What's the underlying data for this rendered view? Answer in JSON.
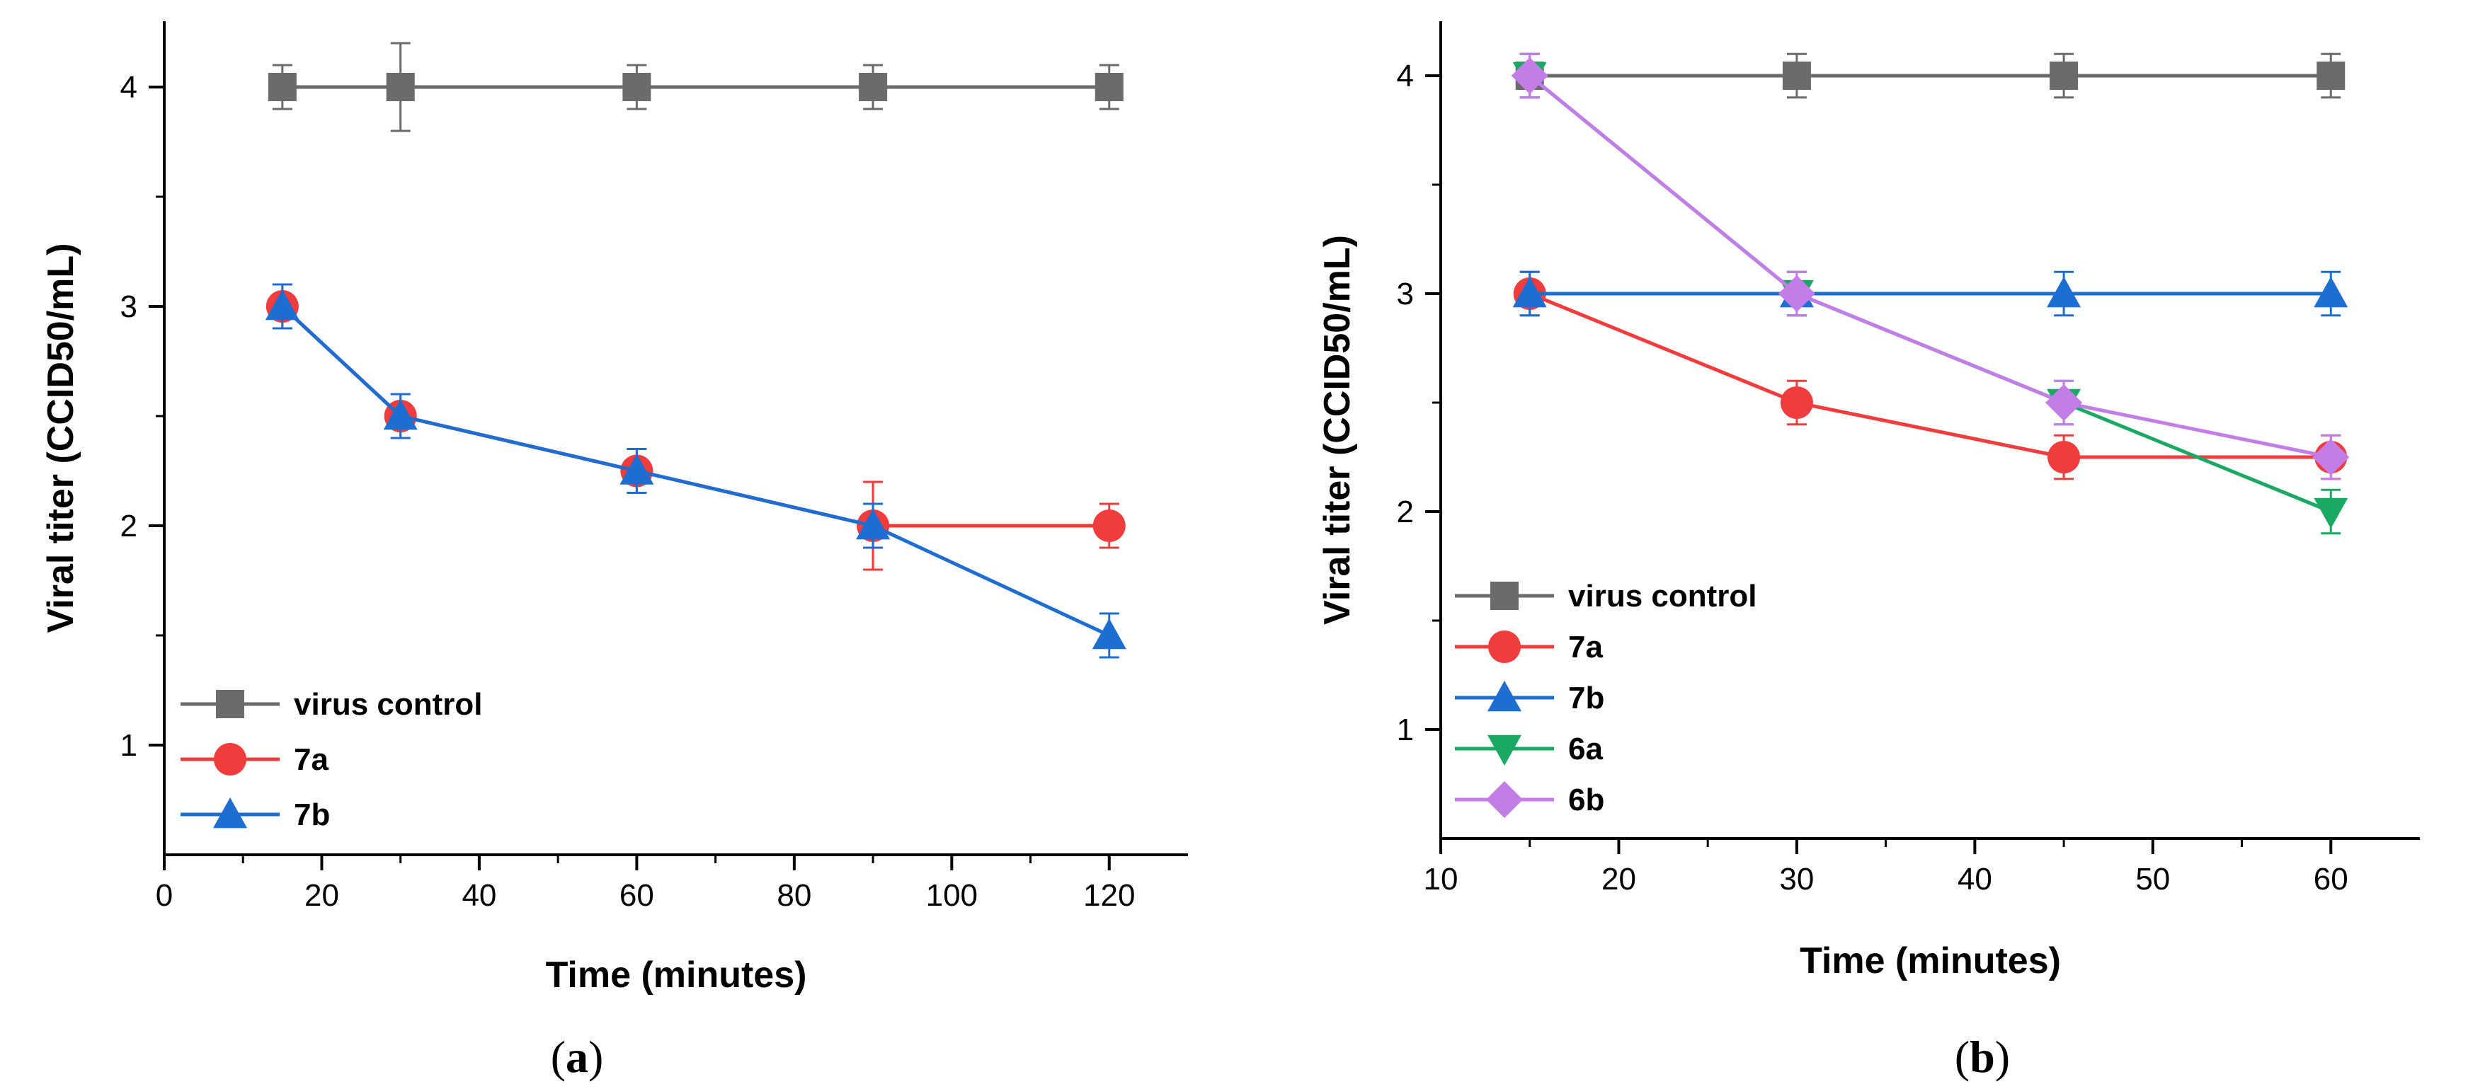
{
  "figure": {
    "panel_labels": [
      "a",
      "b"
    ]
  },
  "chart_data": [
    {
      "type": "line",
      "panel": "a",
      "xlabel": "Time (minutes)",
      "ylabel": "Viral titer (CCID50/mL)",
      "xlim": [
        0,
        130
      ],
      "ylim": [
        0.5,
        4.3
      ],
      "xticks": [
        0,
        20,
        40,
        60,
        80,
        100,
        120
      ],
      "yticks": [
        1,
        2,
        3,
        4
      ],
      "legend_position": "bottom-left",
      "series": [
        {
          "name": "virus control",
          "color": "#6b6b6b",
          "marker": "square",
          "x": [
            15,
            30,
            60,
            90,
            120
          ],
          "y": [
            4,
            4,
            4,
            4,
            4
          ],
          "err": [
            0.1,
            0.2,
            0.1,
            0.1,
            0.1
          ]
        },
        {
          "name": "7a",
          "color": "#f03c3c",
          "marker": "circle",
          "x": [
            15,
            30,
            60,
            90,
            120
          ],
          "y": [
            3,
            2.5,
            2.25,
            2,
            2
          ],
          "err": [
            0.1,
            0.1,
            0.1,
            0.2,
            0.1
          ]
        },
        {
          "name": "7b",
          "color": "#1e6ed2",
          "marker": "triangle-up",
          "x": [
            15,
            30,
            60,
            90,
            120
          ],
          "y": [
            3,
            2.5,
            2.25,
            2,
            1.5
          ],
          "err": [
            0.1,
            0.1,
            0.1,
            0.1,
            0.1
          ]
        }
      ]
    },
    {
      "type": "line",
      "panel": "b",
      "xlabel": "Time (minutes)",
      "ylabel": "Viral titer (CCID50/mL)",
      "xlim": [
        10,
        65
      ],
      "ylim": [
        0.5,
        4.25
      ],
      "xticks": [
        10,
        20,
        30,
        40,
        50,
        60
      ],
      "yticks": [
        1,
        2,
        3,
        4
      ],
      "legend_position": "bottom-left",
      "series": [
        {
          "name": "virus control",
          "color": "#6b6b6b",
          "marker": "square",
          "x": [
            15,
            30,
            45,
            60
          ],
          "y": [
            4,
            4,
            4,
            4
          ],
          "err": [
            0.1,
            0.1,
            0.1,
            0.1
          ]
        },
        {
          "name": "7a",
          "color": "#f03c3c",
          "marker": "circle",
          "x": [
            15,
            30,
            45,
            60
          ],
          "y": [
            3,
            2.5,
            2.25,
            2.25
          ],
          "err": [
            0.1,
            0.1,
            0.1,
            0.1
          ]
        },
        {
          "name": "7b",
          "color": "#1e6ed2",
          "marker": "triangle-up",
          "x": [
            15,
            30,
            45,
            60
          ],
          "y": [
            3,
            3,
            3,
            3
          ],
          "err": [
            0.1,
            0.1,
            0.1,
            0.1
          ]
        },
        {
          "name": "6a",
          "color": "#1aa864",
          "marker": "triangle-down",
          "x": [
            15,
            30,
            45,
            60
          ],
          "y": [
            4,
            3,
            2.5,
            2
          ],
          "err": [
            0.1,
            0.1,
            0.1,
            0.1
          ]
        },
        {
          "name": "6b",
          "color": "#c27ee6",
          "marker": "diamond",
          "x": [
            15,
            30,
            45,
            60
          ],
          "y": [
            4,
            3,
            2.5,
            2.25
          ],
          "err": [
            0.1,
            0.1,
            0.1,
            0.1
          ]
        }
      ]
    }
  ]
}
